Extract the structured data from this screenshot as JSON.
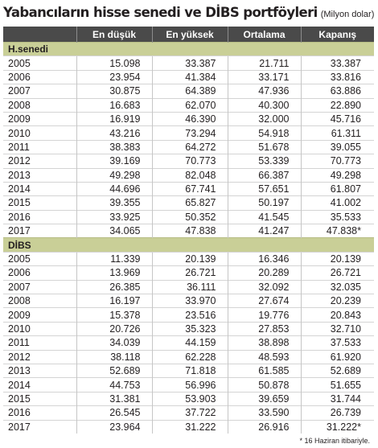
{
  "title": "Yabancıların hisse senedi ve DİBS portföyleri",
  "unit": "(Milyon dolar)",
  "headers": [
    "",
    "En düşük",
    "En yüksek",
    "Ortalama",
    "Kapanış"
  ],
  "sections": [
    {
      "name": "H.senedi",
      "rows": [
        [
          "2005",
          "15.098",
          "33.387",
          "21.711",
          "33.387"
        ],
        [
          "2006",
          "23.954",
          "41.384",
          "33.171",
          "33.816"
        ],
        [
          "2007",
          "30.875",
          "64.389",
          "47.936",
          "63.886"
        ],
        [
          "2008",
          "16.683",
          "62.070",
          "40.300",
          "22.890"
        ],
        [
          "2009",
          "16.919",
          "46.390",
          "32.000",
          "45.716"
        ],
        [
          "2010",
          "43.216",
          "73.294",
          "54.918",
          "61.311"
        ],
        [
          "2011",
          "38.383",
          "64.272",
          "51.678",
          "39.055"
        ],
        [
          "2012",
          "39.169",
          "70.773",
          "53.339",
          "70.773"
        ],
        [
          "2013",
          "49.298",
          "82.048",
          "66.387",
          "49.298"
        ],
        [
          "2014",
          "44.696",
          "67.741",
          "57.651",
          "61.807"
        ],
        [
          "2015",
          "39.355",
          "65.827",
          "50.197",
          "41.002"
        ],
        [
          "2016",
          "33.925",
          "50.352",
          "41.545",
          "35.533"
        ],
        [
          "2017",
          "34.065",
          "47.838",
          "41.247",
          "47.838*"
        ]
      ]
    },
    {
      "name": "DİBS",
      "rows": [
        [
          "2005",
          "11.339",
          "20.139",
          "16.346",
          "20.139"
        ],
        [
          "2006",
          "13.969",
          "26.721",
          "20.289",
          "26.721"
        ],
        [
          "2007",
          "26.385",
          "36.111",
          "32.092",
          "32.035"
        ],
        [
          "2008",
          "16.197",
          "33.970",
          "27.674",
          "20.239"
        ],
        [
          "2009",
          "15.378",
          "23.516",
          "19.776",
          "20.843"
        ],
        [
          "2010",
          "20.726",
          "35.323",
          "27.853",
          "32.710"
        ],
        [
          "2011",
          "34.039",
          "44.159",
          "38.898",
          "37.533"
        ],
        [
          "2012",
          "38.118",
          "62.228",
          "48.593",
          "61.920"
        ],
        [
          "2013",
          "52.689",
          "71.818",
          "61.585",
          "52.689"
        ],
        [
          "2014",
          "44.753",
          "56.996",
          "50.878",
          "51.655"
        ],
        [
          "2015",
          "31.381",
          "53.903",
          "39.659",
          "31.744"
        ],
        [
          "2016",
          "26.545",
          "37.722",
          "33.590",
          "26.739"
        ],
        [
          "2017",
          "23.964",
          "31.222",
          "26.916",
          "31.222*"
        ]
      ]
    }
  ],
  "footnote": "* 16 Haziran itibariyle."
}
